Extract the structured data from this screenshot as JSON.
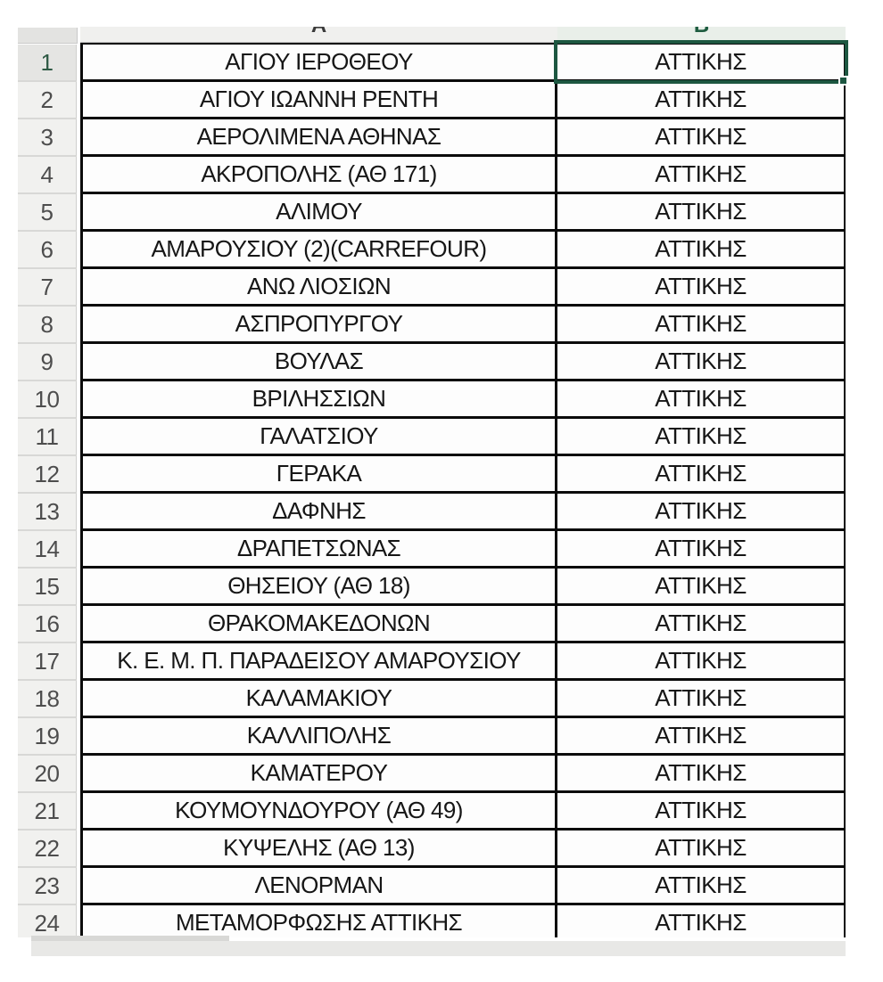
{
  "app": {
    "kind": "spreadsheet"
  },
  "columns": [
    {
      "letter": "A"
    },
    {
      "letter": "B"
    }
  ],
  "selection": {
    "active_cell": "B1"
  },
  "colors": {
    "selection_green": "#1d5741",
    "grid_border": "#0b0b0b",
    "header_bg": "#f0f0ee",
    "header_bg_selected_col": "#e9efe9"
  },
  "rows": [
    {
      "num": "1",
      "name": "ΑΓΙΟΥ ΙΕΡΟΘΕΟΥ",
      "region": "ΑΤΤΙΚΗΣ"
    },
    {
      "num": "2",
      "name": "ΑΓΙΟΥ ΙΩΑΝΝΗ ΡΕΝΤΗ",
      "region": "ΑΤΤΙΚΗΣ"
    },
    {
      "num": "3",
      "name": "ΑΕΡΟΛΙΜΕΝΑ ΑΘΗΝΑΣ",
      "region": "ΑΤΤΙΚΗΣ"
    },
    {
      "num": "4",
      "name": "ΑΚΡΟΠΟΛΗΣ (ΑΘ 171)",
      "region": "ΑΤΤΙΚΗΣ"
    },
    {
      "num": "5",
      "name": "ΑΛΙΜΟΥ",
      "region": "ΑΤΤΙΚΗΣ"
    },
    {
      "num": "6",
      "name": "ΑΜΑΡΟΥΣΙΟΥ (2)(CARREFOUR)",
      "region": "ΑΤΤΙΚΗΣ"
    },
    {
      "num": "7",
      "name": "ΑΝΩ ΛΙΟΣΙΩΝ",
      "region": "ΑΤΤΙΚΗΣ"
    },
    {
      "num": "8",
      "name": "ΑΣΠΡΟΠΥΡΓΟΥ",
      "region": "ΑΤΤΙΚΗΣ"
    },
    {
      "num": "9",
      "name": "ΒΟΥΛΑΣ",
      "region": "ΑΤΤΙΚΗΣ"
    },
    {
      "num": "10",
      "name": "ΒΡΙΛΗΣΣΙΩΝ",
      "region": "ΑΤΤΙΚΗΣ"
    },
    {
      "num": "11",
      "name": "ΓΑΛΑΤΣΙΟΥ",
      "region": "ΑΤΤΙΚΗΣ"
    },
    {
      "num": "12",
      "name": "ΓΕΡΑΚΑ",
      "region": "ΑΤΤΙΚΗΣ"
    },
    {
      "num": "13",
      "name": "ΔΑΦΝΗΣ",
      "region": "ΑΤΤΙΚΗΣ"
    },
    {
      "num": "14",
      "name": "ΔΡΑΠΕΤΣΩΝΑΣ",
      "region": "ΑΤΤΙΚΗΣ"
    },
    {
      "num": "15",
      "name": "ΘΗΣΕΙΟΥ (ΑΘ 18)",
      "region": "ΑΤΤΙΚΗΣ"
    },
    {
      "num": "16",
      "name": "ΘΡΑΚΟΜΑΚΕΔΟΝΩΝ",
      "region": "ΑΤΤΙΚΗΣ"
    },
    {
      "num": "17",
      "name": "Κ. Ε. Μ. Π. ΠΑΡΑΔΕΙΣΟΥ ΑΜΑΡΟΥΣΙΟΥ",
      "region": "ΑΤΤΙΚΗΣ"
    },
    {
      "num": "18",
      "name": "ΚΑΛΑΜΑΚΙΟΥ",
      "region": "ΑΤΤΙΚΗΣ"
    },
    {
      "num": "19",
      "name": "ΚΑΛΛΙΠΟΛΗΣ",
      "region": "ΑΤΤΙΚΗΣ"
    },
    {
      "num": "20",
      "name": "ΚΑΜΑΤΕΡΟΥ",
      "region": "ΑΤΤΙΚΗΣ"
    },
    {
      "num": "21",
      "name": "ΚΟΥΜΟΥΝΔΟΥΡΟΥ (ΑΘ 49)",
      "region": "ΑΤΤΙΚΗΣ"
    },
    {
      "num": "22",
      "name": "ΚΥΨΕΛΗΣ (ΑΘ 13)",
      "region": "ΑΤΤΙΚΗΣ"
    },
    {
      "num": "23",
      "name": "ΛΕΝΟΡΜΑΝ",
      "region": "ΑΤΤΙΚΗΣ"
    },
    {
      "num": "24",
      "name": "ΜΕΤΑΜΟΡΦΩΣΗΣ ΑΤΤΙΚΗΣ",
      "region": "ΑΤΤΙΚΗΣ"
    }
  ]
}
